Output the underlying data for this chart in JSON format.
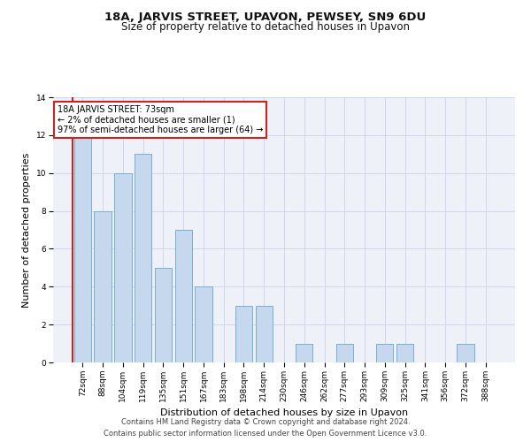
{
  "title": "18A, JARVIS STREET, UPAVON, PEWSEY, SN9 6DU",
  "subtitle": "Size of property relative to detached houses in Upavon",
  "xlabel": "Distribution of detached houses by size in Upavon",
  "ylabel": "Number of detached properties",
  "categories": [
    "72sqm",
    "88sqm",
    "104sqm",
    "119sqm",
    "135sqm",
    "151sqm",
    "167sqm",
    "183sqm",
    "198sqm",
    "214sqm",
    "230sqm",
    "246sqm",
    "262sqm",
    "277sqm",
    "293sqm",
    "309sqm",
    "325sqm",
    "341sqm",
    "356sqm",
    "372sqm",
    "388sqm"
  ],
  "values": [
    12,
    8,
    10,
    11,
    5,
    7,
    4,
    0,
    3,
    3,
    0,
    1,
    0,
    1,
    0,
    1,
    1,
    0,
    0,
    1,
    0
  ],
  "bar_color": "#c5d8ed",
  "bar_edge_color": "#7aaed6",
  "highlight_edge_color": "#cc2222",
  "annotation_box_text": "18A JARVIS STREET: 73sqm\n← 2% of detached houses are smaller (1)\n97% of semi-detached houses are larger (64) →",
  "annotation_box_edge_color": "#cc2222",
  "ylim": [
    0,
    14
  ],
  "yticks": [
    0,
    2,
    4,
    6,
    8,
    10,
    12,
    14
  ],
  "footer_line1": "Contains HM Land Registry data © Crown copyright and database right 2024.",
  "footer_line2": "Contains public sector information licensed under the Open Government Licence v3.0.",
  "bg_color": "#eef2f8",
  "grid_color": "#c8d4e8",
  "title_fontsize": 9.5,
  "subtitle_fontsize": 8.5,
  "tick_fontsize": 6.5,
  "ylabel_fontsize": 8,
  "xlabel_fontsize": 8,
  "footer_fontsize": 6
}
